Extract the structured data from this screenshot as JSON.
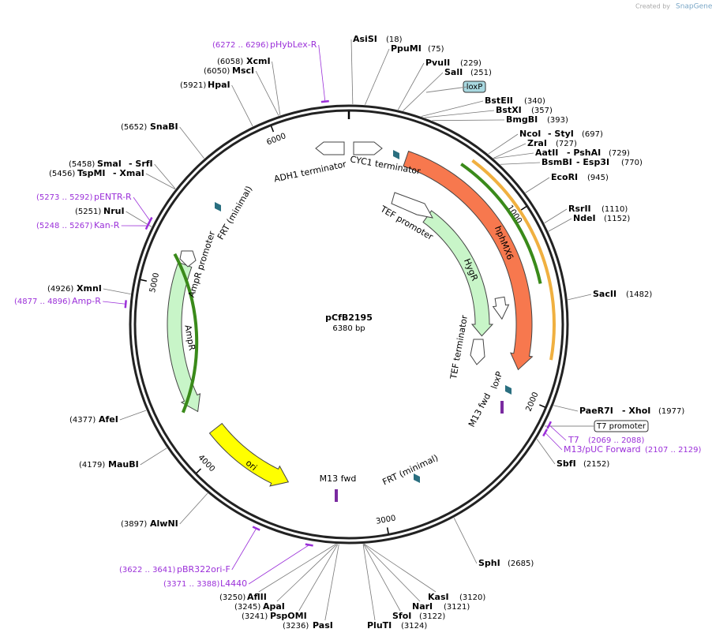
{
  "header": {
    "created": "Created by",
    "brand": "SnapGene"
  },
  "map": {
    "name": "pCfB2195",
    "size": "6380 bp"
  },
  "ticks": [
    "1000",
    "2000",
    "3000",
    "4000",
    "5000",
    "6000"
  ],
  "sites": [
    {
      "name": "AsiSI",
      "pos": "(18)"
    },
    {
      "name": "PpuMI",
      "pos": "(75)"
    },
    {
      "name": "PvuII",
      "pos": "(229)"
    },
    {
      "name": "SalI",
      "pos": "(251)"
    },
    {
      "name": "BstEII",
      "pos": "(340)"
    },
    {
      "name": "BstXI",
      "pos": "(357)"
    },
    {
      "name": "BmgBI",
      "pos": "(393)"
    },
    {
      "name": "NcoI",
      "alt": "- StyI",
      "pos": "(697)"
    },
    {
      "name": "ZraI",
      "pos": "(727)"
    },
    {
      "name": "AatII",
      "alt": "- PshAI",
      "pos": "(729)"
    },
    {
      "name": "BsmBI",
      "alt": "- Esp3I",
      "pos": "(770)"
    },
    {
      "name": "EcoRI",
      "pos": "(945)"
    },
    {
      "name": "RsrII",
      "pos": "(1110)"
    },
    {
      "name": "NdeI",
      "pos": "(1152)"
    },
    {
      "name": "SacII",
      "pos": "(1482)"
    },
    {
      "name": "PaeR7I",
      "alt": "- XhoI",
      "pos": "(1977)"
    },
    {
      "name": "SbfI",
      "pos": "(2152)"
    },
    {
      "name": "SphI",
      "pos": "(2685)"
    },
    {
      "name": "KasI",
      "pos": "(3120)"
    },
    {
      "name": "NarI",
      "pos": "(3121)"
    },
    {
      "name": "SfoI",
      "pos": "(3122)"
    },
    {
      "name": "PluTI",
      "pos": "(3124)"
    },
    {
      "name": "PasI",
      "pos": "(3236)"
    },
    {
      "name": "PspOMI",
      "pos": "(3241)"
    },
    {
      "name": "ApaI",
      "pos": "(3245)"
    },
    {
      "name": "AflII",
      "pos": "(3250)"
    },
    {
      "name": "AlwNI",
      "pos": "(3897)"
    },
    {
      "name": "MauBI",
      "pos": "(4179)"
    },
    {
      "name": "AfeI",
      "pos": "(4377)"
    },
    {
      "name": "XmnI",
      "pos": "(4926)"
    },
    {
      "name": "NruI",
      "pos": "(5251)"
    },
    {
      "name": "TspMI",
      "alt": "- XmaI",
      "pos": "(5456)"
    },
    {
      "name": "SmaI",
      "alt": "- SrfI",
      "pos": "(5458)"
    },
    {
      "name": "SnaBI",
      "pos": "(5652)"
    },
    {
      "name": "HpaI",
      "pos": "(5921)"
    },
    {
      "name": "MscI",
      "pos": "(6050)"
    },
    {
      "name": "XcmI",
      "pos": "(6058)"
    }
  ],
  "primers": [
    {
      "name": "pHybLex-R",
      "range": "(6272 .. 6296)"
    },
    {
      "name": "pENTR-R",
      "range": "(5273 .. 5292)"
    },
    {
      "name": "Kan-R",
      "range": "(5248 .. 5267)"
    },
    {
      "name": "Amp-R",
      "range": "(4877 .. 4896)"
    },
    {
      "name": "pBR322ori-F",
      "range": "(3622 .. 3641)"
    },
    {
      "name": "L4440",
      "range": "(3371 .. 3388)"
    },
    {
      "name": "T7",
      "range": "(2069 .. 2088)"
    },
    {
      "name": "M13/pUC Forward",
      "range": "(2107 .. 2129)"
    }
  ],
  "boxed": [
    "loxP",
    "T7 promoter"
  ],
  "features": [
    "ADH1 terminator",
    "CYC1 terminator",
    "TEF promoter",
    "hphMX6",
    "HygR",
    "TEF terminator",
    "loxP",
    "M13 fwd",
    "FRT (minimal)",
    "ori",
    "AmpR",
    "AmpR promoter",
    "FRT (minimal)",
    "M13 fwd"
  ]
}
